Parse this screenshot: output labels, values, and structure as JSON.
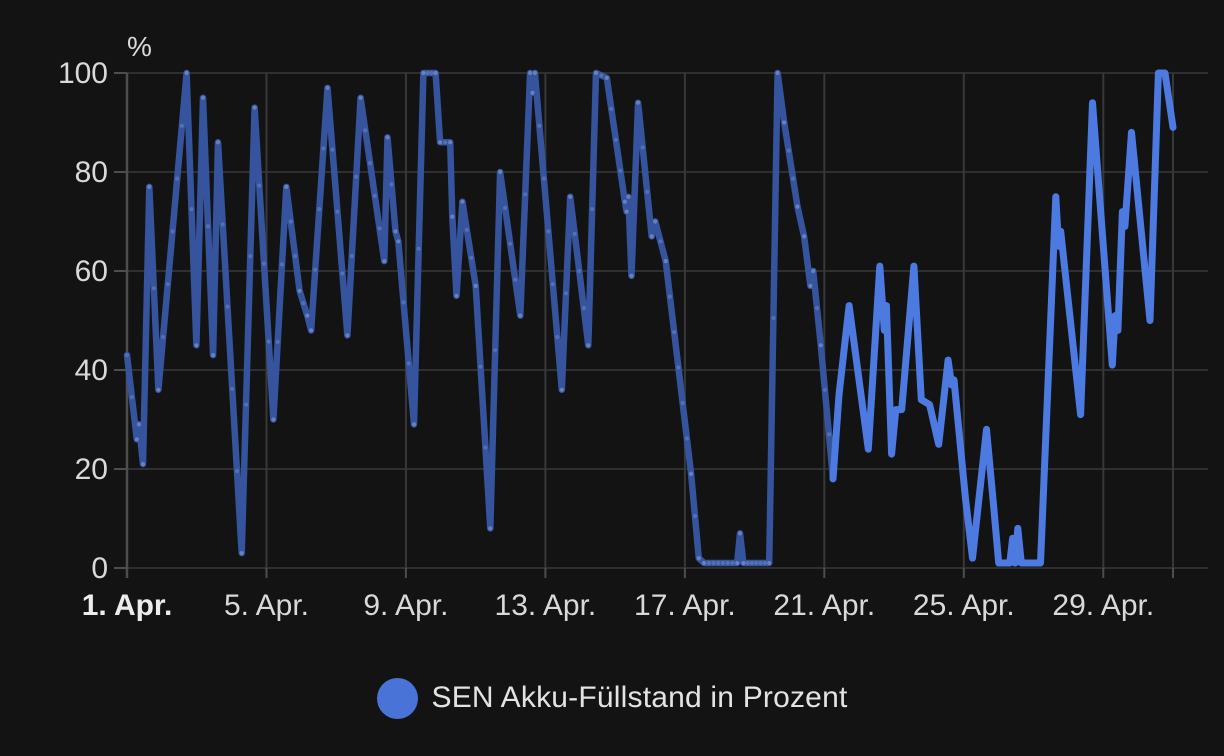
{
  "chart_data": {
    "type": "line",
    "title": "",
    "xlabel": "",
    "ylabel": "%",
    "legend_label": "SEN Akku-Füllstand in Prozent",
    "legend_position": "bottom-center",
    "grid": true,
    "x_domain": [
      1,
      31
    ],
    "ylim": [
      0,
      100
    ],
    "y_ticks": [
      0,
      20,
      40,
      60,
      80,
      100
    ],
    "x_ticks": [
      {
        "day": 1,
        "label": "1. Apr.",
        "bold": true
      },
      {
        "day": 5,
        "label": "5. Apr.",
        "bold": false
      },
      {
        "day": 9,
        "label": "9. Apr.",
        "bold": false
      },
      {
        "day": 13,
        "label": "13. Apr.",
        "bold": false
      },
      {
        "day": 17,
        "label": "17. Apr.",
        "bold": false
      },
      {
        "day": 21,
        "label": "21. Apr.",
        "bold": false
      },
      {
        "day": 25,
        "label": "25. Apr.",
        "bold": false
      },
      {
        "day": 29,
        "label": "29. Apr.",
        "bold": false
      },
      {
        "day": 31,
        "label": "",
        "bold": false
      }
    ],
    "series": [
      {
        "id": "sen-battery-early",
        "name": "SEN Akku-Füllstand in Prozent (1.–21. Apr.)",
        "color": "#35549d",
        "width": 6.5,
        "markers": true,
        "marker_color": "rgba(128,152,212,0.42)",
        "points": [
          [
            1.0,
            43
          ],
          [
            1.28,
            26
          ],
          [
            1.34,
            29
          ],
          [
            1.46,
            21
          ],
          [
            1.64,
            77
          ],
          [
            1.9,
            36
          ],
          [
            2.71,
            100
          ],
          [
            2.99,
            45
          ],
          [
            3.18,
            95
          ],
          [
            3.47,
            43
          ],
          [
            3.61,
            86
          ],
          [
            4.29,
            3
          ],
          [
            4.66,
            93
          ],
          [
            5.2,
            30
          ],
          [
            5.57,
            77
          ],
          [
            5.95,
            56
          ],
          [
            6.17,
            51
          ],
          [
            6.28,
            48
          ],
          [
            6.75,
            97
          ],
          [
            7.32,
            47
          ],
          [
            7.7,
            95
          ],
          [
            8.38,
            62
          ],
          [
            8.47,
            87
          ],
          [
            8.7,
            68
          ],
          [
            8.78,
            66
          ],
          [
            9.23,
            29
          ],
          [
            9.5,
            100
          ],
          [
            9.85,
            100
          ],
          [
            9.98,
            86
          ],
          [
            10.27,
            86
          ],
          [
            10.33,
            71
          ],
          [
            10.45,
            55
          ],
          [
            10.62,
            74
          ],
          [
            11.0,
            57
          ],
          [
            11.42,
            8
          ],
          [
            11.7,
            80
          ],
          [
            12.28,
            51
          ],
          [
            12.56,
            100
          ],
          [
            12.63,
            96
          ],
          [
            12.7,
            100
          ],
          [
            13.47,
            36
          ],
          [
            13.71,
            75
          ],
          [
            14.23,
            45
          ],
          [
            14.45,
            100
          ],
          [
            14.76,
            99
          ],
          [
            15.28,
            74
          ],
          [
            15.33,
            72
          ],
          [
            15.38,
            75
          ],
          [
            15.47,
            59
          ],
          [
            15.66,
            94
          ],
          [
            16.05,
            67
          ],
          [
            16.15,
            70
          ],
          [
            16.45,
            62
          ],
          [
            17.18,
            19
          ],
          [
            17.4,
            2
          ],
          [
            17.55,
            1
          ],
          [
            18.5,
            1
          ],
          [
            18.58,
            7
          ],
          [
            18.68,
            1
          ],
          [
            19.42,
            1
          ],
          [
            19.66,
            100
          ],
          [
            19.85,
            90
          ],
          [
            20.23,
            73
          ],
          [
            20.42,
            67
          ],
          [
            20.6,
            57
          ],
          [
            20.68,
            60
          ],
          [
            20.9,
            45
          ],
          [
            21.25,
            18
          ]
        ]
      },
      {
        "id": "sen-battery-late",
        "name": "SEN Akku-Füllstand in Prozent (21.–30. Apr.)",
        "color": "#4c7ae1",
        "width": 7,
        "markers": false,
        "marker_color": "",
        "points": [
          [
            21.25,
            18
          ],
          [
            21.42,
            35
          ],
          [
            21.71,
            53
          ],
          [
            22.26,
            24
          ],
          [
            22.59,
            61
          ],
          [
            22.72,
            48
          ],
          [
            22.78,
            53
          ],
          [
            22.93,
            23
          ],
          [
            23.05,
            32
          ],
          [
            23.22,
            32
          ],
          [
            23.57,
            61
          ],
          [
            23.78,
            34
          ],
          [
            24.02,
            33
          ],
          [
            24.28,
            25
          ],
          [
            24.55,
            42
          ],
          [
            24.65,
            37
          ],
          [
            24.72,
            38
          ],
          [
            25.05,
            14
          ],
          [
            25.25,
            2
          ],
          [
            25.65,
            28
          ],
          [
            25.85,
            13
          ],
          [
            26.0,
            1
          ],
          [
            26.32,
            1
          ],
          [
            26.4,
            6
          ],
          [
            26.47,
            1
          ],
          [
            26.55,
            8
          ],
          [
            26.65,
            1
          ],
          [
            27.2,
            1
          ],
          [
            27.64,
            75
          ],
          [
            27.72,
            65
          ],
          [
            27.78,
            68
          ],
          [
            28.35,
            31
          ],
          [
            28.69,
            94
          ],
          [
            29.26,
            41
          ],
          [
            29.34,
            51
          ],
          [
            29.42,
            48
          ],
          [
            29.55,
            72
          ],
          [
            29.62,
            69
          ],
          [
            29.81,
            88
          ],
          [
            30.34,
            50
          ],
          [
            30.58,
            100
          ],
          [
            30.77,
            100
          ],
          [
            31.0,
            89
          ]
        ]
      }
    ],
    "colors": {
      "background": "#131313",
      "grid_h": "#2f2f2f",
      "grid_v": "#383838",
      "axis": "#4d4d4d",
      "tick": "#4d4d4d",
      "tick_text": "#d9d9d9",
      "tick_text_bold": "#ececec",
      "legend_dot": "#4a73d7",
      "legend_text": "#e3e3e3"
    }
  }
}
